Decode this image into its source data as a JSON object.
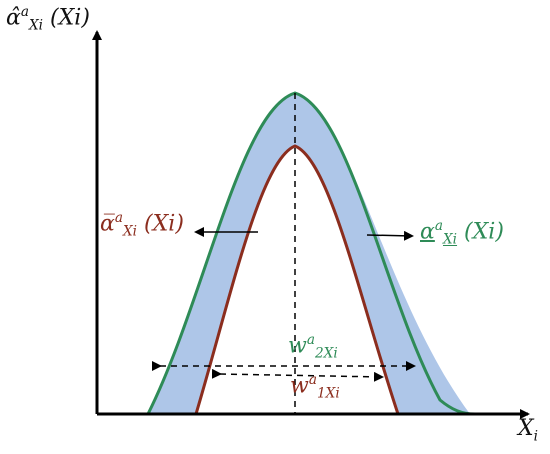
{
  "axes": {
    "y_label": "α̂",
    "y_label_sup": "a",
    "y_label_sub": "Xi",
    "y_label_arg": "(Xi)",
    "x_label": "X",
    "x_label_sub": "i"
  },
  "curves": {
    "upper": {
      "symbol": "α",
      "sup": "a",
      "sub": "Xi",
      "arg": "(Xi)",
      "color": "#2e8b57"
    },
    "lower": {
      "symbol": "α̅",
      "sup": "a",
      "sub": "Xi",
      "arg": "(Xi)",
      "color": "#8b2d1e"
    },
    "band_fill": "#aec6e8"
  },
  "widths": {
    "w2": {
      "symbol": "w",
      "sup": "a",
      "sub": "2Xi"
    },
    "w1": {
      "symbol": "w",
      "sup": "a",
      "sub": "1Xi"
    }
  }
}
